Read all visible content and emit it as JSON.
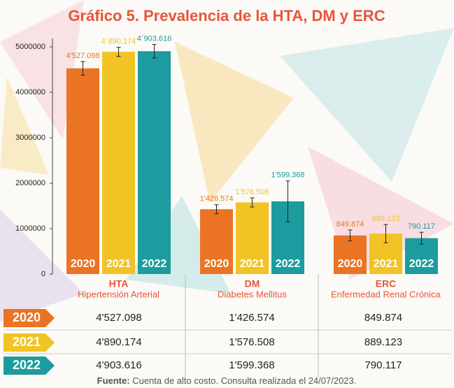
{
  "chart_data": {
    "type": "bar",
    "title": "Gráfico 5. Prevalencia de la HTA, DM y ERC",
    "categories": [
      "HTA",
      "DM",
      "ERC"
    ],
    "category_subtitles": [
      "Hipertensión Arterial",
      "Diabetes Mellitus",
      "Enfermedad Renal Crónica"
    ],
    "series": [
      {
        "name": "2020",
        "color": "#ea7423",
        "values": [
          4527098,
          1426574,
          849874
        ],
        "errors": [
          150000,
          100000,
          120000
        ],
        "value_labels": [
          "4'527.098",
          "1'426.574",
          "849.874"
        ]
      },
      {
        "name": "2021",
        "color": "#f1c325",
        "values": [
          4890174,
          1576508,
          889123
        ],
        "errors": [
          100000,
          100000,
          200000
        ],
        "value_labels": [
          "4´890.174",
          "1'576.508",
          "889.123"
        ]
      },
      {
        "name": "2022",
        "color": "#1c9c9e",
        "values": [
          4903616,
          1599368,
          790117
        ],
        "errors": [
          150000,
          450000,
          130000
        ],
        "value_labels": [
          "4´903.616",
          "1'599.368",
          "790.117"
        ]
      }
    ],
    "ylim": [
      0,
      5300000
    ],
    "yticks": [
      0,
      1000000,
      2000000,
      3000000,
      4000000,
      5000000
    ],
    "table": {
      "rows": [
        [
          "4'527.098",
          "1'426.574",
          "849.874"
        ],
        [
          "4'890.174",
          "1'576.508",
          "889.123"
        ],
        [
          "4'903.616",
          "1'599.368",
          "790.117"
        ]
      ]
    },
    "source_label": "Fuente:",
    "source": "Cuenta de alto costo. Consulta realizada el 24/07/2023."
  }
}
